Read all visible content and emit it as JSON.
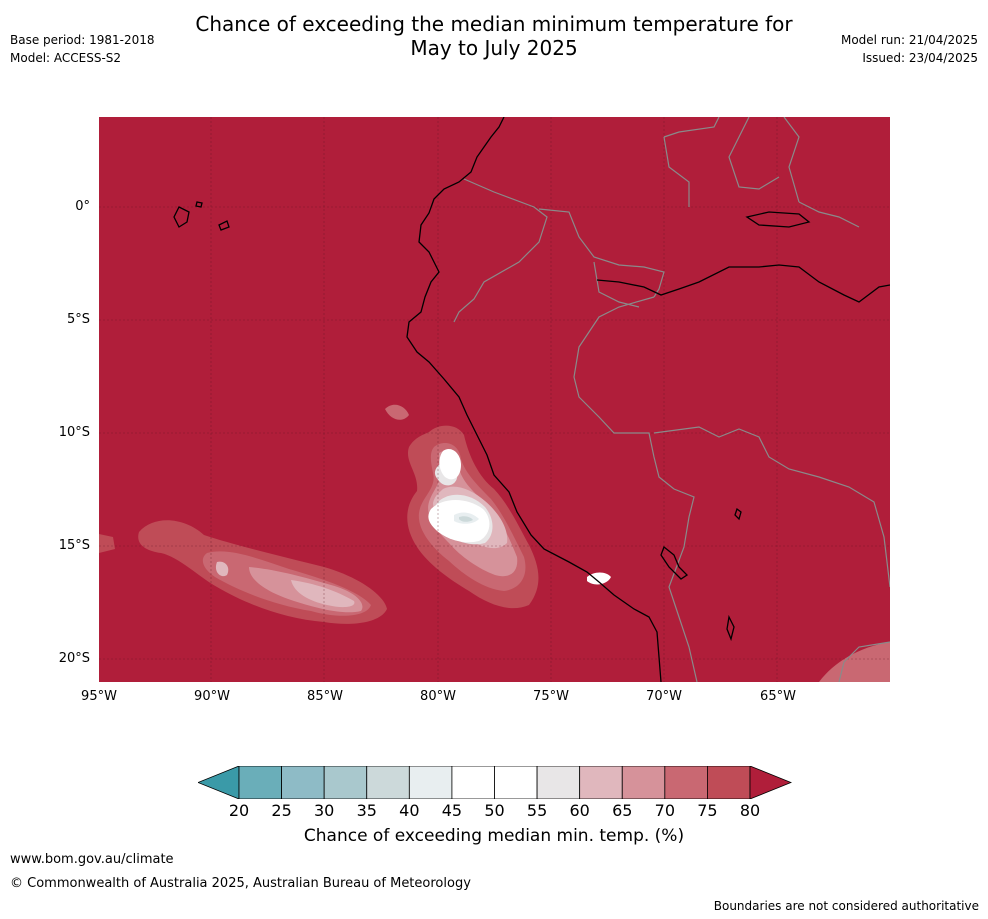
{
  "title_line1": "Chance of exceeding the median minimum temperature for",
  "title_line2": "May to July 2025",
  "meta_left": {
    "base_period": "Base period: 1981-2018",
    "model": "Model: ACCESS-S2"
  },
  "meta_right": {
    "model_run": "Model run: 21/04/2025",
    "issued": "Issued: 23/04/2025"
  },
  "lat_labels": [
    "0°",
    "5°S",
    "10°S",
    "15°S",
    "20°S"
  ],
  "lon_labels": [
    "95°W",
    "90°W",
    "85°W",
    "80°W",
    "75°W",
    "70°W",
    "65°W"
  ],
  "colorbar": {
    "ticks": [
      "20",
      "25",
      "30",
      "35",
      "40",
      "45",
      "50",
      "55",
      "60",
      "65",
      "70",
      "75",
      "80"
    ],
    "colors": [
      "#3a9aa8",
      "#6aaeb9",
      "#8ebbc6",
      "#a9c8cd",
      "#ccd9da",
      "#e8eef0",
      "#ffffff",
      "#ffffff",
      "#e8e6e7",
      "#e0b7bd",
      "#d6929a",
      "#c96872",
      "#bf4c57",
      "#b01e3a"
    ],
    "label": "Chance of exceeding median min. temp. (%)"
  },
  "footer": {
    "url": "www.bom.gov.au/climate",
    "copyright": "© Commonwealth of Australia 2025, Australian Bureau of Meteorology",
    "boundary_note": "Boundaries are not considered authoritative"
  }
}
